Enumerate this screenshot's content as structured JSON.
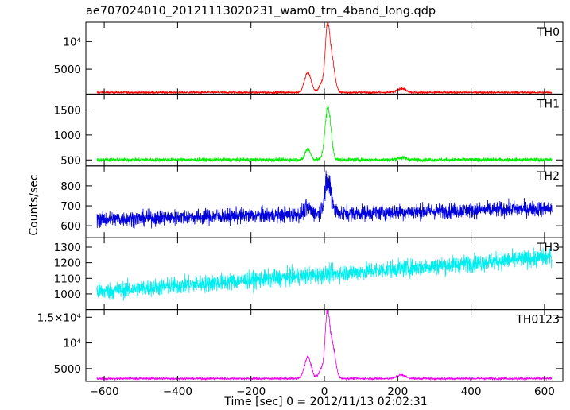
{
  "title": "ae707024010_20121113020231_wam0_trn_4band_long.qdp",
  "ylabel": "Counts/sec",
  "xlabel": "Time [sec] 0 = 2012/11/13 02:02:31",
  "chart_data": {
    "type": "line",
    "xlim": [
      -650,
      650
    ],
    "x_ticks": [
      -600,
      -400,
      -200,
      0,
      200,
      400,
      600
    ],
    "x_tick_labels": [
      "−600",
      "−400",
      "−200",
      "0",
      "200",
      "400",
      "600"
    ],
    "panels": [
      {
        "name": "TH0",
        "color": "#ff0000",
        "ylim": [
          500,
          13500
        ],
        "ticks": [
          5000,
          10000
        ],
        "tick_labels": [
          "5000",
          "10⁴"
        ],
        "baseline": 800,
        "slope": 0,
        "noise": 130,
        "peaks": [
          {
            "center": -45,
            "width": 9,
            "amplitude": 3600
          },
          {
            "center": 8,
            "width": 6,
            "amplitude": 10500
          },
          {
            "center": 20,
            "width": 8,
            "amplitude": 6000
          },
          {
            "center": -8,
            "width": 7,
            "amplitude": 1500
          },
          {
            "center": 210,
            "width": 12,
            "amplitude": 700
          }
        ]
      },
      {
        "name": "TH1",
        "color": "#00ee00",
        "ylim": [
          380,
          1820
        ],
        "ticks": [
          500,
          1000,
          1500
        ],
        "tick_labels": [
          "500",
          "1000",
          "1500"
        ],
        "baseline": 505,
        "slope": 0,
        "noise": 28,
        "peaks": [
          {
            "center": -45,
            "width": 7,
            "amplitude": 220
          },
          {
            "center": 10,
            "width": 8,
            "amplitude": 1050
          },
          {
            "center": 210,
            "width": 12,
            "amplitude": 40
          }
        ]
      },
      {
        "name": "TH2",
        "color": "#0000dd",
        "ylim": [
          540,
          900
        ],
        "ticks": [
          600,
          700,
          800
        ],
        "tick_labels": [
          "600",
          "700",
          "800"
        ],
        "baseline": 660,
        "slope": 0.045,
        "noise": 28,
        "peaks": [
          {
            "center": 10,
            "width": 10,
            "amplitude": 150
          },
          {
            "center": -45,
            "width": 10,
            "amplitude": 30
          }
        ]
      },
      {
        "name": "TH3",
        "color": "#00eeee",
        "ylim": [
          900,
          1360
        ],
        "ticks": [
          1000,
          1100,
          1200,
          1300
        ],
        "tick_labels": [
          "1000",
          "1100",
          "1200",
          "1300"
        ],
        "baseline": 1125,
        "slope": 0.18,
        "noise": 40,
        "peaks": []
      },
      {
        "name": "TH0123",
        "color": "#ee00ee",
        "ylim": [
          2500,
          16500
        ],
        "ticks": [
          5000,
          10000,
          15000
        ],
        "tick_labels": [
          "5000",
          "10⁴",
          "1.5×10⁴"
        ],
        "baseline": 3050,
        "slope": 0,
        "noise": 160,
        "peaks": [
          {
            "center": -45,
            "width": 9,
            "amplitude": 4200
          },
          {
            "center": 8,
            "width": 6,
            "amplitude": 12000
          },
          {
            "center": 22,
            "width": 8,
            "amplitude": 6500
          },
          {
            "center": -8,
            "width": 7,
            "amplitude": 1800
          },
          {
            "center": 210,
            "width": 12,
            "amplitude": 700
          }
        ]
      }
    ]
  }
}
